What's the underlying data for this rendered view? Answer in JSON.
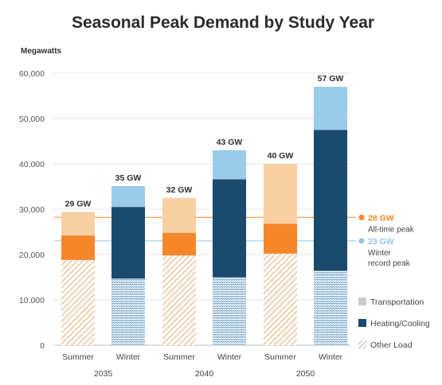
{
  "chart_data": {
    "type": "bar",
    "stacked": true,
    "title": "Seasonal Peak Demand by Study Year",
    "ylabel": "Megawatts",
    "ylim": [
      0,
      60000
    ],
    "yticks": [
      0,
      10000,
      20000,
      30000,
      40000,
      50000,
      60000
    ],
    "ytick_labels": [
      "0",
      "10,000",
      "20,000",
      "30,000",
      "40,000",
      "50,000",
      "60,000"
    ],
    "grid": true,
    "legend_position": "right",
    "groups": [
      {
        "label": "2035",
        "categories": [
          "Summer",
          "Winter"
        ]
      },
      {
        "label": "2040",
        "categories": [
          "Summer",
          "Winter"
        ]
      },
      {
        "label": "2050",
        "categories": [
          "Summer",
          "Winter"
        ]
      }
    ],
    "categories": [
      "Summer",
      "Winter",
      "Summer",
      "Winter",
      "Summer",
      "Winter"
    ],
    "series": [
      {
        "name": "Other Load",
        "values": [
          18800,
          14700,
          19800,
          15000,
          20200,
          16400
        ]
      },
      {
        "name": "Heating/Cooling",
        "values": [
          5400,
          15800,
          5000,
          21600,
          6600,
          31100
        ]
      },
      {
        "name": "Transportation",
        "values": [
          5200,
          4600,
          7700,
          6400,
          13200,
          9500
        ]
      }
    ],
    "totals": [
      "29 GW",
      "35 GW",
      "32 GW",
      "43 GW",
      "40 GW",
      "57 GW"
    ],
    "reference_lines": [
      {
        "value": 28200,
        "value_label": "28 GW",
        "text": [
          "All-time peak"
        ],
        "color": "#f5862a"
      },
      {
        "value": 23000,
        "value_label": "23 GW",
        "text": [
          "Winter",
          "record peak"
        ],
        "color": "#8fc8ea"
      }
    ],
    "colors": {
      "summer": {
        "Other Load": "#f0a667",
        "Heating/Cooling": "#f5862a",
        "Transportation": "#f9cfa4"
      },
      "winter": {
        "Other Load": "#6e9fc6",
        "Heating/Cooling": "#1a4a6d",
        "Transportation": "#9bcbea"
      },
      "legend": {
        "Transportation": "#c8cdd0",
        "Heating/Cooling": "#1a4a6d",
        "Other Load": "#8c97a2"
      },
      "grid": "#e3e3e3",
      "axis": "#bdbdbd"
    }
  }
}
